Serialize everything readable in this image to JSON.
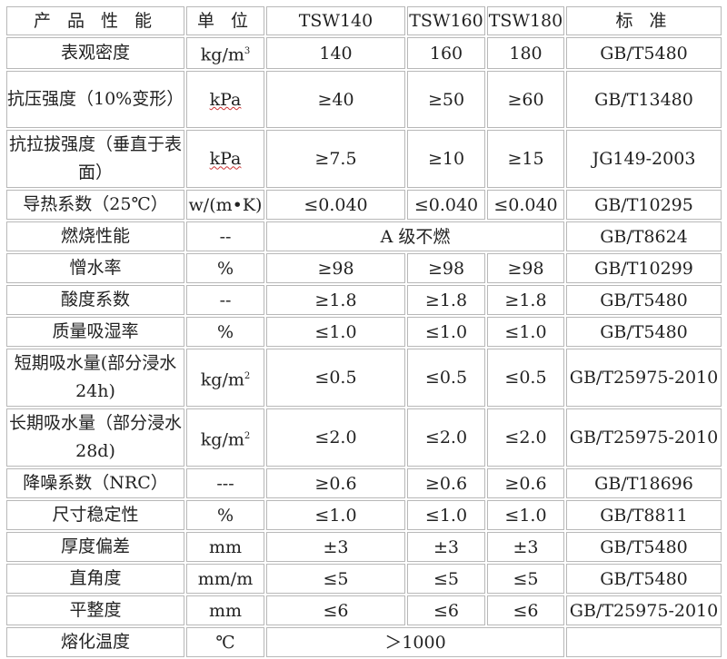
{
  "header": [
    "产 品 性 能",
    "单 位",
    "TSW140",
    "TSW160",
    "TSW180",
    "标 准"
  ],
  "rows": [
    {
      "property": "表观密度",
      "unit": "kg/m",
      "unit_sup": "3",
      "values": [
        "140",
        "160",
        "180"
      ],
      "standard": "GB/T5480"
    },
    {
      "property": "抗压强度（10%变形）",
      "unit": "kPa",
      "spellcheck": true,
      "values": [
        "≥40",
        "≥50",
        "≥60"
      ],
      "standard": "GB/T13480",
      "tall": true
    },
    {
      "property": "抗拉拔强度（垂直于表面）",
      "unit": "kPa",
      "spellcheck": true,
      "values": [
        "≥7.5",
        "≥10",
        "≥15"
      ],
      "standard": "JG149-2003",
      "tall": true
    },
    {
      "property": "导热系数（25℃）",
      "unit": "w/(m•K)",
      "values": [
        "≤0.040",
        "≤0.040",
        "≤0.040"
      ],
      "standard": "GB/T10295"
    },
    {
      "property": "燃烧性能",
      "unit": "--",
      "merged": true,
      "values": [
        "A 级不燃"
      ],
      "standard": "GB/T8624"
    },
    {
      "property": "憎水率",
      "unit": "%",
      "values": [
        "≥98",
        "≥98",
        "≥98"
      ],
      "standard": "GB/T10299"
    },
    {
      "property": "酸度系数",
      "unit": "--",
      "values": [
        "≥1.8",
        "≥1.8",
        "≥1.8"
      ],
      "standard": "GB/T5480"
    },
    {
      "property": "质量吸湿率",
      "unit": "%",
      "values": [
        "≤1.0",
        "≤1.0",
        "≤1.0"
      ],
      "standard": "GB/T5480"
    },
    {
      "property": "短期吸水量(部分浸水 24h)",
      "unit": "kg/m",
      "unit_sup": "2",
      "values": [
        "≤0.5",
        "≤0.5",
        "≤0.5"
      ],
      "standard": "GB/T25975-2010",
      "tall": true
    },
    {
      "property": "长期吸水量（部分浸水 28d)",
      "unit": "kg/m",
      "unit_sup": "2",
      "values": [
        "≤2.0",
        "≤2.0",
        "≤2.0"
      ],
      "standard": "GB/T25975-2010",
      "tall": true
    },
    {
      "property": "降噪系数（NRC）",
      "unit": "---",
      "values": [
        "≥0.6",
        "≥0.6",
        "≥0.6"
      ],
      "standard": "GB/T18696"
    },
    {
      "property": "尺寸稳定性",
      "unit": "%",
      "values": [
        "≤1.0",
        "≤1.0",
        "≤1.0"
      ],
      "standard": "GB/T8811"
    },
    {
      "property": "厚度偏差",
      "unit": "mm",
      "values": [
        "±3",
        "±3",
        "±3"
      ],
      "standard": "GB/T5480"
    },
    {
      "property": "直角度",
      "unit": "mm/m",
      "values": [
        "≤5",
        "≤5",
        "≤5"
      ],
      "standard": "GB/T5480"
    },
    {
      "property": "平整度",
      "unit": "mm",
      "values": [
        "≤6",
        "≤6",
        "≤6"
      ],
      "standard": "GB/T25975-2010"
    },
    {
      "property": "熔化温度",
      "unit": "℃",
      "merged": true,
      "values": [
        "＞1000"
      ],
      "standard": ""
    }
  ]
}
